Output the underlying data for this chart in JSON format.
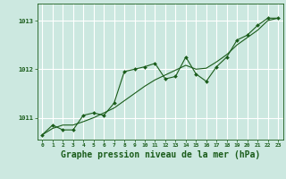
{
  "background_color": "#cce8e0",
  "plot_bg_color": "#cce8e0",
  "grid_color": "#ffffff",
  "line_color": "#1a5c1a",
  "xlabel": "Graphe pression niveau de la mer (hPa)",
  "xlabel_fontsize": 7,
  "ylabel_ticks": [
    1011,
    1012,
    1013
  ],
  "xlim": [
    -0.5,
    23.5
  ],
  "ylim": [
    1010.55,
    1013.35
  ],
  "x_hours": [
    0,
    1,
    2,
    3,
    4,
    5,
    6,
    7,
    8,
    9,
    10,
    11,
    12,
    13,
    14,
    15,
    16,
    17,
    18,
    19,
    20,
    21,
    22,
    23
  ],
  "raw_y": [
    1010.65,
    1010.85,
    1010.75,
    1010.75,
    1011.05,
    1011.1,
    1011.05,
    1011.3,
    1011.95,
    1012.0,
    1012.05,
    1012.12,
    1011.8,
    1011.85,
    1012.25,
    1011.9,
    1011.75,
    1012.05,
    1012.25,
    1012.6,
    1012.7,
    1012.9,
    1013.05,
    1013.05
  ],
  "smooth_y": [
    1010.65,
    1010.78,
    1010.85,
    1010.85,
    1010.92,
    1011.0,
    1011.1,
    1011.2,
    1011.35,
    1011.5,
    1011.65,
    1011.78,
    1011.88,
    1011.98,
    1012.08,
    1012.0,
    1012.02,
    1012.15,
    1012.3,
    1012.5,
    1012.65,
    1012.8,
    1013.0,
    1013.05
  ]
}
